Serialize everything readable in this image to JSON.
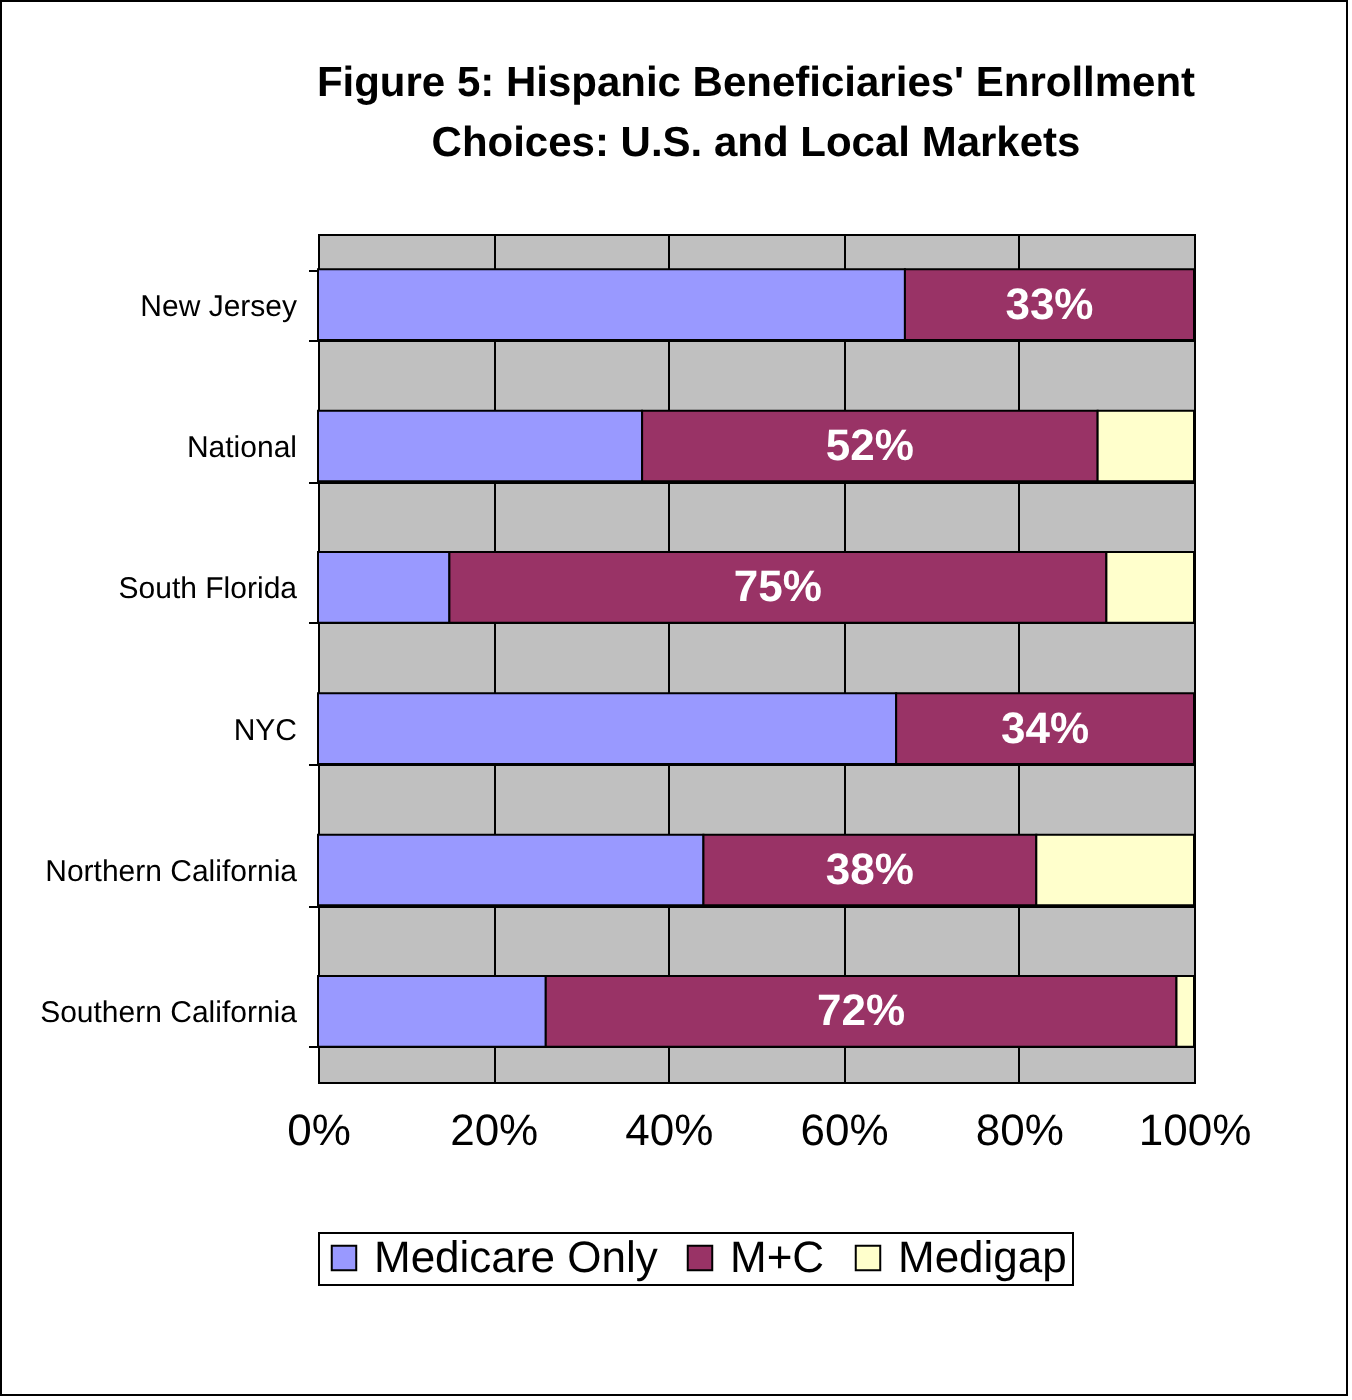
{
  "chart_data": {
    "type": "bar",
    "orientation": "horizontal",
    "stacked": true,
    "title": "Figure 5: Hispanic Beneficiaries' Enrollment Choices: U.S. and Local Markets",
    "categories": [
      "New Jersey",
      "National",
      "South Florida",
      "NYC",
      "Northern California",
      "Southern California"
    ],
    "series": [
      {
        "name": "Medicare Only",
        "color": "#9999ff",
        "values": [
          67,
          37,
          15,
          66,
          44,
          26
        ]
      },
      {
        "name": "M+C",
        "color": "#993366",
        "values": [
          33,
          52,
          75,
          34,
          38,
          72
        ],
        "value_labels": [
          "33%",
          "52%",
          "75%",
          "34%",
          "38%",
          "72%"
        ]
      },
      {
        "name": "Medigap",
        "color": "#ffffcc",
        "values": [
          null,
          11,
          10,
          null,
          18,
          2
        ]
      }
    ],
    "xlim": [
      0,
      100
    ],
    "xticks": [
      {
        "value": 0,
        "label": "0%"
      },
      {
        "value": 20,
        "label": "20%"
      },
      {
        "value": 40,
        "label": "40%"
      },
      {
        "value": 60,
        "label": "60%"
      },
      {
        "value": 80,
        "label": "80%"
      },
      {
        "value": 100,
        "label": "100%"
      }
    ],
    "grid": true,
    "legend": "bottom"
  }
}
